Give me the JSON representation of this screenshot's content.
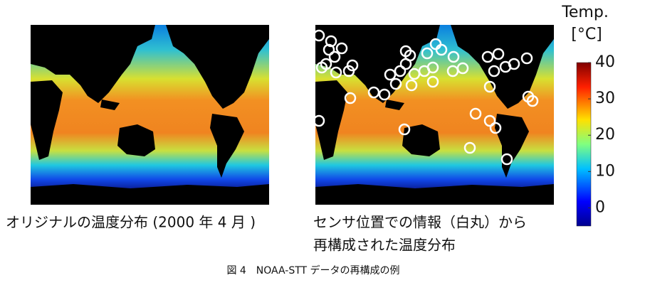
{
  "figure": {
    "left_caption": "オリジナルの温度分布 (2000 年 4 月 )",
    "right_caption": [
      "センサ位置での情報（白丸）から",
      "再構成された温度分布"
    ],
    "caption": "図 4　NOAA-STT データの再構成の例",
    "colorbar": {
      "title": [
        "Temp.",
        "[°C]"
      ],
      "lim": [
        -5,
        40
      ],
      "ticks": [
        0,
        10,
        20,
        30,
        40
      ]
    }
  }
}
